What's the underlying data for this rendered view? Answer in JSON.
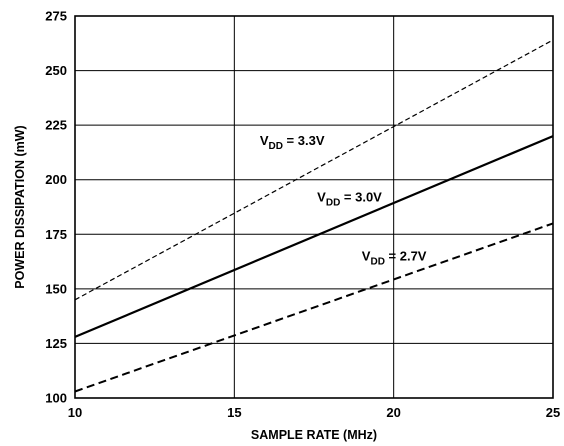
{
  "chart_data": {
    "type": "line",
    "title": "",
    "xlabel": "SAMPLE RATE (MHz)",
    "ylabel": "POWER DISSIPATION (mW)",
    "xlim": [
      10,
      25
    ],
    "ylim": [
      100,
      275
    ],
    "xticks": [
      10,
      15,
      20,
      25
    ],
    "yticks": [
      100,
      125,
      150,
      175,
      200,
      225,
      250,
      275
    ],
    "xtick_labels": [
      "10",
      "15",
      "20",
      "25"
    ],
    "ytick_labels": [
      "100",
      "125",
      "150",
      "175",
      "200",
      "225",
      "250",
      "275"
    ],
    "grid": true,
    "legend": "none",
    "series": [
      {
        "label": {
          "main": "V",
          "sub": "DD",
          "rest": " = 3.3V"
        },
        "style": "dashed-thin",
        "x": [
          10,
          25
        ],
        "y": [
          145,
          264
        ],
        "label_at": {
          "x": 15.8,
          "y": 216
        }
      },
      {
        "label": {
          "main": "V",
          "sub": "DD",
          "rest": " = 3.0V"
        },
        "style": "solid",
        "x": [
          10,
          25
        ],
        "y": [
          128,
          220
        ],
        "label_at": {
          "x": 17.6,
          "y": 190
        }
      },
      {
        "label": {
          "main": "V",
          "sub": "DD",
          "rest": " = 2.7V"
        },
        "style": "dashed-thick",
        "x": [
          10,
          25
        ],
        "y": [
          103,
          180
        ],
        "label_at": {
          "x": 19.0,
          "y": 163
        }
      }
    ]
  },
  "colors": {
    "line": "#000000",
    "grid": "#000000",
    "background": "#ffffff"
  }
}
